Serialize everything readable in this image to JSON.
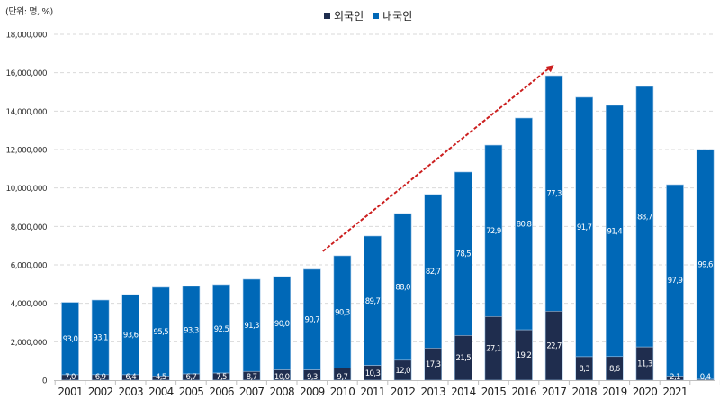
{
  "chart_data": {
    "type": "bar",
    "stacked": true,
    "unit_label": "(단위: 명, %)",
    "yticks": [
      "0",
      "2,000,000",
      "4,000,000",
      "6,000,000",
      "8,000,000",
      "10,000,000",
      "12,000,000",
      "14,000,000",
      "16,000,000",
      "18,000,000"
    ],
    "ylim": [
      0,
      18000000
    ],
    "grid": true,
    "legend_position": "top-center",
    "categories": [
      "2001",
      "2002",
      "2003",
      "2004",
      "2005",
      "2006",
      "2007",
      "2008",
      "2009",
      "2010",
      "2011",
      "2012",
      "2013",
      "2014",
      "2015",
      "2016",
      "2017",
      "2018",
      "2019",
      "2020",
      "2021",
      ""
    ],
    "totals": [
      4050000,
      4170000,
      4450000,
      4830000,
      4880000,
      4970000,
      5250000,
      5390000,
      5770000,
      6470000,
      7500000,
      8670000,
      9660000,
      10830000,
      12230000,
      13640000,
      15840000,
      14720000,
      14300000,
      15280000,
      10170000,
      12000000
    ],
    "series": [
      {
        "name": "외국인",
        "color": "#1f2d4e",
        "pct": [
          7.0,
          6.9,
          6.4,
          4.5,
          6.7,
          7.5,
          8.7,
          10.0,
          9.3,
          9.7,
          10.3,
          12.0,
          17.3,
          21.5,
          27.1,
          19.2,
          22.7,
          8.3,
          8.6,
          11.3,
          2.1,
          0.4
        ],
        "labels": [
          "7,0",
          "6,9",
          "6,4",
          "4,5",
          "6,7",
          "7,5",
          "8,7",
          "10,0",
          "9,3",
          "9,7",
          "10,3",
          "12,0",
          "17,3",
          "21,5",
          "27,1",
          "19,2",
          "22,7",
          "8,3",
          "8,6",
          "11,3",
          "2,1",
          "0,4"
        ]
      },
      {
        "name": "내국인",
        "color": "#0068b7",
        "pct": [
          93.0,
          93.1,
          93.6,
          95.5,
          93.3,
          92.5,
          91.3,
          90.0,
          90.7,
          90.3,
          89.7,
          88.0,
          82.7,
          78.5,
          72.9,
          80.8,
          77.3,
          91.7,
          91.4,
          88.7,
          97.9,
          99.6
        ],
        "labels": [
          "93,0",
          "93,1",
          "93,6",
          "95,5",
          "93,3",
          "92,5",
          "91,3",
          "90,0",
          "90,7",
          "90,3",
          "89,7",
          "88,0",
          "82,7",
          "78,5",
          "72,9",
          "80,8",
          "77,3",
          "91,7",
          "91,4",
          "88,7",
          "97,9",
          "99,6"
        ]
      }
    ],
    "annotation": {
      "type": "trend-arrow",
      "from_category": "2009",
      "to_category": "2017",
      "color": "#cc1f1f"
    }
  }
}
